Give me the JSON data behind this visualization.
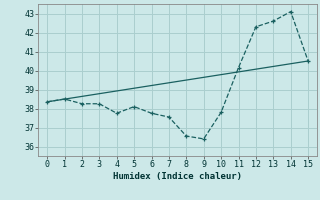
{
  "xlabel": "Humidex (Indice chaleur)",
  "background_color": "#cce8e8",
  "grid_color": "#aacece",
  "line_color": "#1a6060",
  "xlim": [
    -0.5,
    15.5
  ],
  "ylim": [
    35.5,
    43.5
  ],
  "xticks": [
    0,
    1,
    2,
    3,
    4,
    5,
    6,
    7,
    8,
    9,
    10,
    11,
    12,
    13,
    14,
    15
  ],
  "yticks": [
    36,
    37,
    38,
    39,
    40,
    41,
    42,
    43
  ],
  "line1_x": [
    0,
    1,
    2,
    3,
    4,
    5,
    6,
    7,
    8,
    9,
    10,
    11,
    12,
    13,
    14,
    15
  ],
  "line1_y": [
    38.35,
    38.5,
    38.25,
    38.25,
    37.75,
    38.1,
    37.75,
    37.55,
    36.55,
    36.4,
    37.8,
    40.15,
    42.3,
    42.6,
    43.1,
    40.5
  ],
  "line2_x": [
    0,
    15
  ],
  "line2_y": [
    38.35,
    40.5
  ]
}
